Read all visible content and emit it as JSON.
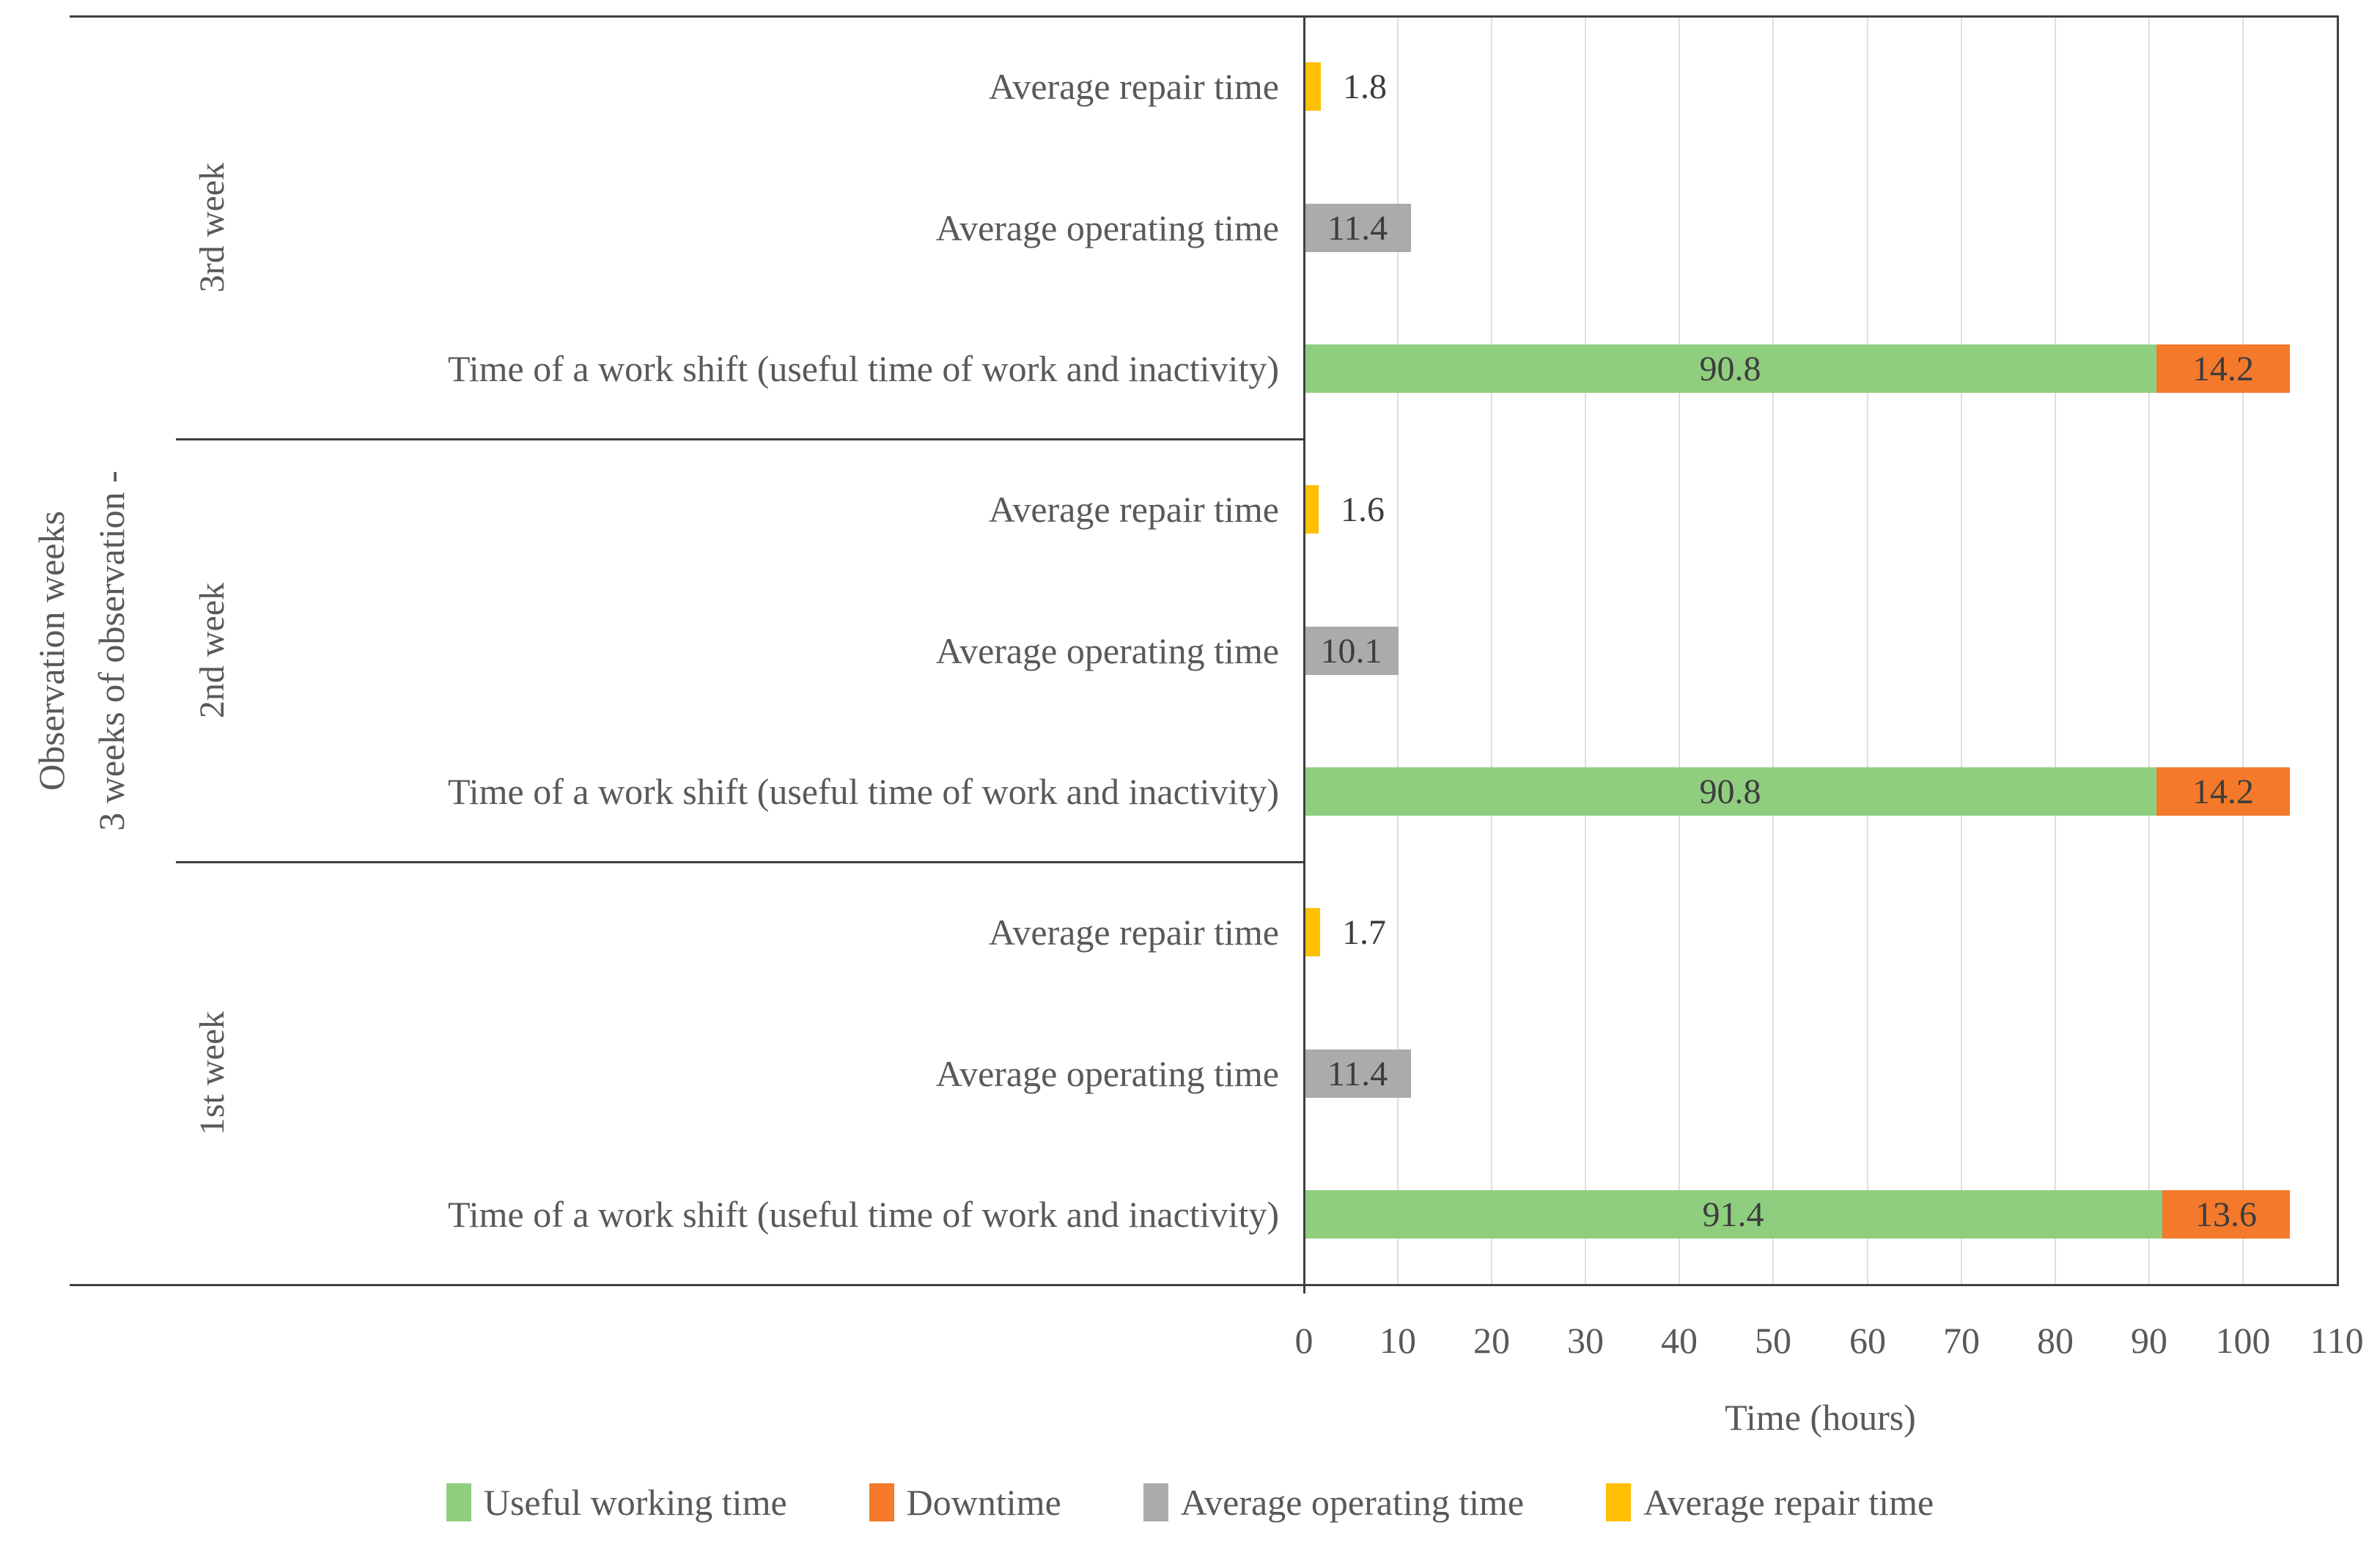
{
  "chart_data": {
    "type": "bar",
    "orientation": "horizontal",
    "stacked": true,
    "grid": true,
    "legend_position": "bottom",
    "x_axis": {
      "label": "Time (hours)",
      "min": 0,
      "max": 110,
      "tick_step": 10,
      "ticks": [
        0,
        10,
        20,
        30,
        40,
        50,
        60,
        70,
        80,
        90,
        100,
        110
      ]
    },
    "y_axis": {
      "label_line1": "Observation weeks",
      "label_line2": "3 weeks of observation -"
    },
    "legend": [
      {
        "name": "Useful working time",
        "color": "#8fce7e"
      },
      {
        "name": "Downtime",
        "color": "#f4792b"
      },
      {
        "name": "Average operating time",
        "color": "#ababab"
      },
      {
        "name": "Average repair time",
        "color": "#ffc003"
      }
    ],
    "groups": [
      {
        "week": "3rd week",
        "rows": [
          {
            "category": "Average repair time",
            "segments": [
              {
                "series": "Average repair time",
                "value": 1.8
              }
            ]
          },
          {
            "category": "Average operating time",
            "segments": [
              {
                "series": "Average operating time",
                "value": 11.4
              }
            ]
          },
          {
            "category": "Time of a work shift (useful time of work and inactivity)",
            "segments": [
              {
                "series": "Useful working time",
                "value": 90.8
              },
              {
                "series": "Downtime",
                "value": 14.2
              }
            ]
          }
        ]
      },
      {
        "week": "2nd week",
        "rows": [
          {
            "category": "Average repair time",
            "segments": [
              {
                "series": "Average repair time",
                "value": 1.6
              }
            ]
          },
          {
            "category": "Average operating time",
            "segments": [
              {
                "series": "Average operating time",
                "value": 10.1
              }
            ]
          },
          {
            "category": "Time of a work shift (useful time of work and inactivity)",
            "segments": [
              {
                "series": "Useful working time",
                "value": 90.8
              },
              {
                "series": "Downtime",
                "value": 14.2
              }
            ]
          }
        ]
      },
      {
        "week": "1st week",
        "rows": [
          {
            "category": "Average repair time",
            "segments": [
              {
                "series": "Average repair time",
                "value": 1.7
              }
            ]
          },
          {
            "category": "Average operating time",
            "segments": [
              {
                "series": "Average operating time",
                "value": 11.4
              }
            ]
          },
          {
            "category": "Time of a work shift (useful time of work and inactivity)",
            "segments": [
              {
                "series": "Useful working time",
                "value": 91.4
              },
              {
                "series": "Downtime",
                "value": 13.6
              }
            ]
          }
        ]
      }
    ],
    "colors": {
      "grid_line": "#dfdfdf",
      "axis_line": "#404040",
      "value_text": "#3d3d3d",
      "label_text": "#595959"
    }
  }
}
